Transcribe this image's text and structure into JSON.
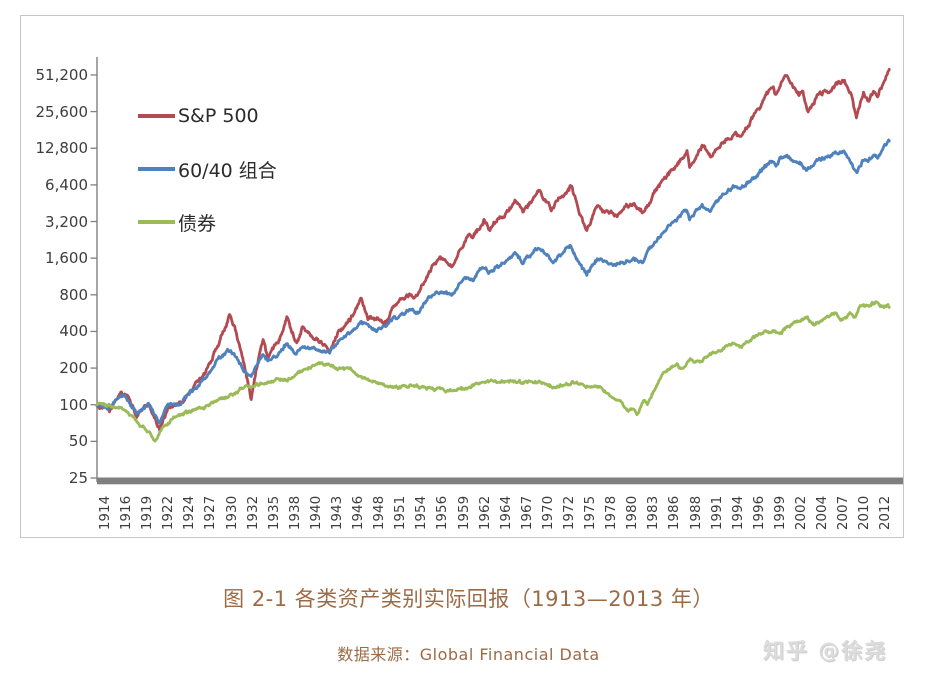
{
  "caption": {
    "title": "图 2-1 各类资产类别实际回报（1913—2013 年）",
    "source_label": "数据来源：Global Financial Data",
    "color": "#9e6a44"
  },
  "watermark": {
    "text": "知乎 @徐尧",
    "color": "#dcdcdc"
  },
  "chart_data": {
    "type": "line",
    "title": "图 2-1 各类资产类别实际回报（1913—2013 年）",
    "source": "数据来源：Global Financial Data",
    "grid": false,
    "legend_position": "inside-top-left",
    "y_axis": {
      "scale": "log2",
      "range": [
        25,
        51200
      ],
      "ticks": [
        "51,200",
        "25,600",
        "12,800",
        "6,400",
        "3,200",
        "1,600",
        "800",
        "400",
        "200",
        "100",
        "50",
        "25"
      ],
      "axis_color": "#808080",
      "baseline_bar_color": "#7f7f7f"
    },
    "x_axis": {
      "range_years": [
        1913,
        2013
      ],
      "ticks": [
        "1914",
        "1916",
        "1919",
        "1922",
        "1924",
        "1927",
        "1930",
        "1932",
        "1935",
        "1938",
        "1940",
        "1943",
        "1946",
        "1948",
        "1951",
        "1954",
        "1956",
        "1959",
        "1962",
        "1964",
        "1967",
        "1970",
        "1972",
        "1975",
        "1978",
        "1980",
        "1983",
        "1986",
        "1988",
        "1991",
        "1994",
        "1996",
        "1999",
        "2002",
        "2004",
        "2007",
        "2010",
        "2012"
      ],
      "tick_interval_months": 32
    },
    "series": [
      {
        "name": "S&P 500",
        "color": "#b34a52",
        "noise": 0.085,
        "anchors": [
          [
            1913,
            100
          ],
          [
            1914.6,
            88
          ],
          [
            1916,
            126
          ],
          [
            1917,
            115
          ],
          [
            1918,
            80
          ],
          [
            1919.5,
            103
          ],
          [
            1920.9,
            63
          ],
          [
            1922,
            97
          ],
          [
            1923.6,
            100
          ],
          [
            1924.6,
            124
          ],
          [
            1926,
            160
          ],
          [
            1927,
            200
          ],
          [
            1928.2,
            300
          ],
          [
            1929.2,
            430
          ],
          [
            1929.8,
            545
          ],
          [
            1930.5,
            400
          ],
          [
            1931.7,
            210
          ],
          [
            1932.5,
            113
          ],
          [
            1933.5,
            260
          ],
          [
            1934,
            335
          ],
          [
            1934.6,
            235
          ],
          [
            1936,
            340
          ],
          [
            1937,
            545
          ],
          [
            1938.2,
            320
          ],
          [
            1939,
            450
          ],
          [
            1940,
            390
          ],
          [
            1941,
            330
          ],
          [
            1942.4,
            290
          ],
          [
            1943.5,
            400
          ],
          [
            1945,
            510
          ],
          [
            1946.4,
            740
          ],
          [
            1947.3,
            515
          ],
          [
            1948.5,
            485
          ],
          [
            1949.5,
            475
          ],
          [
            1950.5,
            620
          ],
          [
            1951.5,
            710
          ],
          [
            1952.5,
            790
          ],
          [
            1953.6,
            770
          ],
          [
            1955,
            1290
          ],
          [
            1956.3,
            1600
          ],
          [
            1957,
            1500
          ],
          [
            1957.9,
            1380
          ],
          [
            1958.8,
            1950
          ],
          [
            1959.9,
            2500
          ],
          [
            1960.5,
            2300
          ],
          [
            1961.9,
            3300
          ],
          [
            1962.6,
            2650
          ],
          [
            1963.5,
            3150
          ],
          [
            1964.5,
            3600
          ],
          [
            1965.9,
            4500
          ],
          [
            1966.8,
            3650
          ],
          [
            1968.9,
            5900
          ],
          [
            1970.5,
            3950
          ],
          [
            1971.8,
            5400
          ],
          [
            1972.9,
            6350
          ],
          [
            1974.9,
            2650
          ],
          [
            1976.2,
            4350
          ],
          [
            1977.5,
            3750
          ],
          [
            1978.5,
            3550
          ],
          [
            1980.8,
            4600
          ],
          [
            1982.2,
            3750
          ],
          [
            1983.5,
            5500
          ],
          [
            1985,
            7500
          ],
          [
            1986.5,
            9800
          ],
          [
            1987.6,
            12000
          ],
          [
            1987.9,
            8800
          ],
          [
            1989.5,
            13200
          ],
          [
            1990.6,
            10500
          ],
          [
            1992,
            14500
          ],
          [
            1993.5,
            16800
          ],
          [
            1994.4,
            16000
          ],
          [
            1995.5,
            21000
          ],
          [
            1996.5,
            26000
          ],
          [
            1997.5,
            34000
          ],
          [
            1998.5,
            40000
          ],
          [
            1998.8,
            33500
          ],
          [
            1999.5,
            45000
          ],
          [
            2000.2,
            53000
          ],
          [
            2001,
            40000
          ],
          [
            2001.8,
            33500
          ],
          [
            2002.2,
            38000
          ],
          [
            2002.8,
            25500
          ],
          [
            2004,
            34000
          ],
          [
            2005,
            36000
          ],
          [
            2006,
            40000
          ],
          [
            2007.5,
            46000
          ],
          [
            2008.3,
            37000
          ],
          [
            2009,
            22500
          ],
          [
            2009.9,
            37000
          ],
          [
            2010.5,
            31500
          ],
          [
            2011.2,
            38000
          ],
          [
            2011.7,
            34000
          ],
          [
            2012.3,
            42000
          ],
          [
            2013.2,
            57000
          ]
        ]
      },
      {
        "name": "60/40 组合",
        "color": "#4f81bd",
        "noise": 0.07,
        "anchors": [
          [
            1913,
            100
          ],
          [
            1914.6,
            92
          ],
          [
            1916,
            120
          ],
          [
            1917,
            108
          ],
          [
            1918,
            82
          ],
          [
            1919.5,
            100
          ],
          [
            1920.9,
            68
          ],
          [
            1922,
            100
          ],
          [
            1923.6,
            103
          ],
          [
            1924.6,
            122
          ],
          [
            1926,
            148
          ],
          [
            1927,
            180
          ],
          [
            1928.2,
            230
          ],
          [
            1929.5,
            280
          ],
          [
            1930.5,
            250
          ],
          [
            1931.7,
            185
          ],
          [
            1932.5,
            168
          ],
          [
            1933.5,
            230
          ],
          [
            1934,
            258
          ],
          [
            1934.6,
            225
          ],
          [
            1936,
            262
          ],
          [
            1937,
            330
          ],
          [
            1938.2,
            260
          ],
          [
            1939,
            302
          ],
          [
            1940,
            290
          ],
          [
            1941,
            275
          ],
          [
            1942.4,
            265
          ],
          [
            1943.5,
            330
          ],
          [
            1945,
            400
          ],
          [
            1946.4,
            490
          ],
          [
            1947.3,
            430
          ],
          [
            1948.5,
            420
          ],
          [
            1949.5,
            432
          ],
          [
            1950.5,
            500
          ],
          [
            1951.5,
            540
          ],
          [
            1952.5,
            590
          ],
          [
            1953.6,
            590
          ],
          [
            1955,
            760
          ],
          [
            1956.3,
            850
          ],
          [
            1957,
            830
          ],
          [
            1957.9,
            800
          ],
          [
            1958.8,
            980
          ],
          [
            1959.9,
            1120
          ],
          [
            1960.5,
            1080
          ],
          [
            1961.9,
            1360
          ],
          [
            1962.6,
            1210
          ],
          [
            1963.5,
            1360
          ],
          [
            1964.5,
            1500
          ],
          [
            1965.9,
            1720
          ],
          [
            1966.8,
            1500
          ],
          [
            1968.9,
            1950
          ],
          [
            1970.5,
            1500
          ],
          [
            1971.8,
            1800
          ],
          [
            1972.9,
            2050
          ],
          [
            1974.9,
            1150
          ],
          [
            1976.2,
            1560
          ],
          [
            1977.5,
            1460
          ],
          [
            1978.5,
            1410
          ],
          [
            1980.8,
            1620
          ],
          [
            1982.2,
            1560
          ],
          [
            1983.5,
            2100
          ],
          [
            1985,
            2800
          ],
          [
            1986.5,
            3500
          ],
          [
            1987.6,
            4000
          ],
          [
            1987.9,
            3320
          ],
          [
            1989.5,
            4400
          ],
          [
            1990.6,
            3900
          ],
          [
            1992,
            5200
          ],
          [
            1993.5,
            5950
          ],
          [
            1994.4,
            5700
          ],
          [
            1995.5,
            6800
          ],
          [
            1996.5,
            7800
          ],
          [
            1997.5,
            9200
          ],
          [
            1998.5,
            10200
          ],
          [
            1998.8,
            9200
          ],
          [
            1999.5,
            10800
          ],
          [
            2000.2,
            11200
          ],
          [
            2001,
            10200
          ],
          [
            2002.8,
            8600
          ],
          [
            2004,
            10300
          ],
          [
            2005,
            10800
          ],
          [
            2006,
            11300
          ],
          [
            2007.5,
            12000
          ],
          [
            2009,
            8300
          ],
          [
            2009.9,
            10500
          ],
          [
            2010.5,
            9800
          ],
          [
            2011.2,
            11200
          ],
          [
            2011.7,
            10700
          ],
          [
            2012.3,
            12300
          ],
          [
            2013.2,
            14600
          ]
        ]
      },
      {
        "name": "债券",
        "color": "#9bbb59",
        "noise": 0.05,
        "anchors": [
          [
            1913,
            100
          ],
          [
            1914.5,
            97
          ],
          [
            1916,
            93
          ],
          [
            1917.5,
            79
          ],
          [
            1918.5,
            68
          ],
          [
            1920.3,
            52
          ],
          [
            1921.5,
            67
          ],
          [
            1922.5,
            77
          ],
          [
            1924,
            85
          ],
          [
            1926,
            93
          ],
          [
            1928,
            103
          ],
          [
            1930,
            122
          ],
          [
            1931.5,
            138
          ],
          [
            1933,
            148
          ],
          [
            1934.5,
            153
          ],
          [
            1936,
            162
          ],
          [
            1937,
            158
          ],
          [
            1938.5,
            185
          ],
          [
            1940,
            208
          ],
          [
            1941,
            215
          ],
          [
            1942,
            208
          ],
          [
            1943.5,
            202
          ],
          [
            1945,
            195
          ],
          [
            1946.2,
            175
          ],
          [
            1947.5,
            155
          ],
          [
            1949,
            148
          ],
          [
            1951,
            140
          ],
          [
            1953,
            143
          ],
          [
            1955,
            138
          ],
          [
            1957,
            131
          ],
          [
            1959,
            133
          ],
          [
            1961.5,
            150
          ],
          [
            1964,
            158
          ],
          [
            1966,
            152
          ],
          [
            1968,
            158
          ],
          [
            1969.5,
            150
          ],
          [
            1970.5,
            137
          ],
          [
            1971.5,
            140
          ],
          [
            1973,
            153
          ],
          [
            1974,
            148
          ],
          [
            1975.5,
            138
          ],
          [
            1976.7,
            140
          ],
          [
            1978,
            115
          ],
          [
            1979.6,
            99
          ],
          [
            1980.2,
            88
          ],
          [
            1980.8,
            96
          ],
          [
            1981.3,
            83
          ],
          [
            1982.1,
            114
          ],
          [
            1982.6,
            105
          ],
          [
            1984,
            160
          ],
          [
            1985.2,
            193
          ],
          [
            1986.3,
            212
          ],
          [
            1987,
            193
          ],
          [
            1988,
            232
          ],
          [
            1989.3,
            225
          ],
          [
            1990.5,
            258
          ],
          [
            1992,
            285
          ],
          [
            1993.5,
            320
          ],
          [
            1994.5,
            295
          ],
          [
            1996,
            360
          ],
          [
            1997.5,
            395
          ],
          [
            1998.5,
            410
          ],
          [
            1999.3,
            385
          ],
          [
            2000,
            420
          ],
          [
            2001.5,
            480
          ],
          [
            2002.7,
            505
          ],
          [
            2003.6,
            455
          ],
          [
            2005,
            520
          ],
          [
            2006.3,
            560
          ],
          [
            2007,
            505
          ],
          [
            2008.2,
            570
          ],
          [
            2008.8,
            520
          ],
          [
            2009.5,
            655
          ],
          [
            2010.6,
            625
          ],
          [
            2011,
            680
          ],
          [
            2011.8,
            678
          ],
          [
            2012.5,
            625
          ],
          [
            2012.9,
            645
          ],
          [
            2013.2,
            610
          ]
        ]
      }
    ]
  }
}
